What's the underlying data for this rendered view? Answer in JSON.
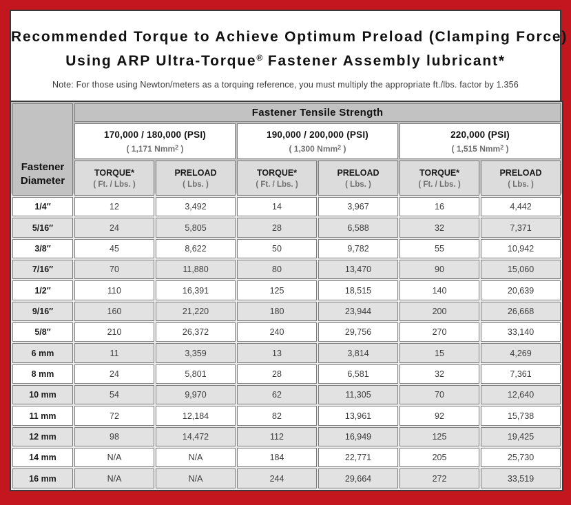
{
  "title": {
    "line1": "Recommended Torque to Achieve Optimum Preload (Clamping Force)",
    "line2_prefix": "Using ARP Ultra-Torque",
    "line2_reg": "®",
    "line2_suffix": " Fastener Assembly lubricant*"
  },
  "note": "Note: For those using Newton/meters as a torquing reference, you must multiply the appropriate ft./lbs. factor by 1.356",
  "colors": {
    "frame_red": "#c4161f",
    "panel_white": "#ffffff",
    "header_gray": "#c2c2c2",
    "subheader_gray": "#dcdcdc",
    "alt_row_gray": "#e2e2e2",
    "border_dark": "#3a3a3a",
    "cell_border": "#7d7d7d"
  },
  "table": {
    "corner_label": "Fastener Diameter",
    "tensile_header": "Fastener Tensile Strength",
    "groups": [
      {
        "psi": "170,000 / 180,000 (PSI)",
        "nmm_pre": "( 1,171 Nmm",
        "nmm_sup": "2",
        "nmm_post": " )"
      },
      {
        "psi": "190,000 / 200,000 (PSI)",
        "nmm_pre": "( 1,300 Nmm",
        "nmm_sup": "2",
        "nmm_post": " )"
      },
      {
        "psi": "220,000 (PSI)",
        "nmm_pre": "( 1,515 Nmm",
        "nmm_sup": "2",
        "nmm_post": " )"
      }
    ],
    "col_headers": {
      "torque": "TORQUE*",
      "torque_unit": "( Ft. / Lbs. )",
      "preload": "PRELOAD",
      "preload_unit": "( Lbs. )"
    },
    "rows": [
      {
        "diameter": "1/4″",
        "values": [
          "12",
          "3,492",
          "14",
          "3,967",
          "16",
          "4,442"
        ]
      },
      {
        "diameter": "5/16″",
        "values": [
          "24",
          "5,805",
          "28",
          "6,588",
          "32",
          "7,371"
        ]
      },
      {
        "diameter": "3/8″",
        "values": [
          "45",
          "8,622",
          "50",
          "9,782",
          "55",
          "10,942"
        ]
      },
      {
        "diameter": "7/16″",
        "values": [
          "70",
          "11,880",
          "80",
          "13,470",
          "90",
          "15,060"
        ]
      },
      {
        "diameter": "1/2″",
        "values": [
          "110",
          "16,391",
          "125",
          "18,515",
          "140",
          "20,639"
        ]
      },
      {
        "diameter": "9/16″",
        "values": [
          "160",
          "21,220",
          "180",
          "23,944",
          "200",
          "26,668"
        ]
      },
      {
        "diameter": "5/8″",
        "values": [
          "210",
          "26,372",
          "240",
          "29,756",
          "270",
          "33,140"
        ]
      },
      {
        "diameter": "6 mm",
        "values": [
          "11",
          "3,359",
          "13",
          "3,814",
          "15",
          "4,269"
        ]
      },
      {
        "diameter": "8 mm",
        "values": [
          "24",
          "5,801",
          "28",
          "6,581",
          "32",
          "7,361"
        ]
      },
      {
        "diameter": "10 mm",
        "values": [
          "54",
          "9,970",
          "62",
          "11,305",
          "70",
          "12,640"
        ]
      },
      {
        "diameter": "11 mm",
        "values": [
          "72",
          "12,184",
          "82",
          "13,961",
          "92",
          "15,738"
        ]
      },
      {
        "diameter": "12 mm",
        "values": [
          "98",
          "14,472",
          "112",
          "16,949",
          "125",
          "19,425"
        ]
      },
      {
        "diameter": "14 mm",
        "values": [
          "N/A",
          "N/A",
          "184",
          "22,771",
          "205",
          "25,730"
        ]
      },
      {
        "diameter": "16 mm",
        "values": [
          "N/A",
          "N/A",
          "244",
          "29,664",
          "272",
          "33,519"
        ]
      }
    ]
  }
}
